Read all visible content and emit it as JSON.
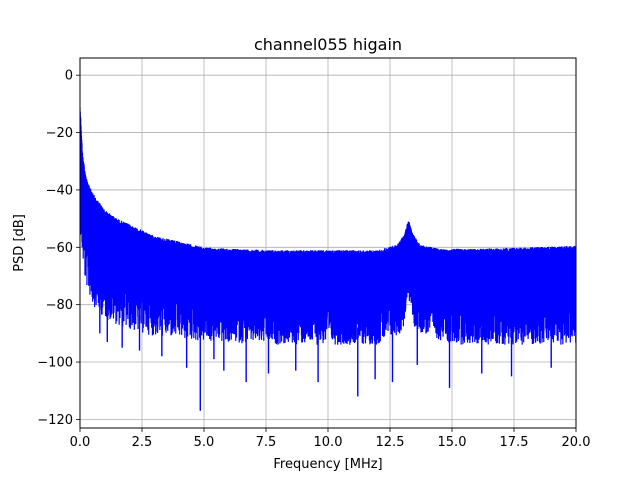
{
  "chart_data": {
    "type": "line",
    "title": "channel055 higain",
    "xlabel": "Frequency [MHz]",
    "ylabel": "PSD [dB]",
    "xlim": [
      0,
      20
    ],
    "ylim": [
      -123,
      6
    ],
    "x_ticks": [
      0,
      2.5,
      5,
      7.5,
      10,
      12.5,
      15,
      17.5,
      20
    ],
    "x_tick_labels": [
      "0.0",
      "2.5",
      "5.0",
      "7.5",
      "10.0",
      "12.5",
      "15.0",
      "17.5",
      "20.0"
    ],
    "y_ticks": [
      0,
      -20,
      -40,
      -60,
      -80,
      -100,
      -120
    ],
    "y_tick_labels": [
      "0",
      "−20",
      "−40",
      "−60",
      "−80",
      "−100",
      "−120"
    ],
    "grid": true,
    "series": [
      {
        "color": "#0000ff",
        "upper_envelope": {
          "x": [
            0,
            0.05,
            0.1,
            0.2,
            0.3,
            0.5,
            0.75,
            1.0,
            1.5,
            2.0,
            2.5,
            3.0,
            4.0,
            5.0,
            6.0,
            8.0,
            10.0,
            12.0,
            12.8,
            13.1,
            13.25,
            13.4,
            13.7,
            14.5,
            16.0,
            18.0,
            20.0
          ],
          "y": [
            -10,
            -18,
            -27,
            -33,
            -37,
            -41,
            -44,
            -47,
            -50,
            -52,
            -54,
            -56,
            -58,
            -60,
            -60.5,
            -61,
            -61,
            -61,
            -59,
            -55,
            -50,
            -55,
            -59,
            -60.5,
            -60.5,
            -60,
            -59.5
          ]
        },
        "lower_envelope": {
          "x": [
            0,
            0.2,
            0.5,
            1.0,
            2.0,
            3.0,
            5.0,
            8.0,
            10.0,
            12.0,
            13.0,
            13.25,
            13.5,
            15.0,
            20.0
          ],
          "y": [
            -55,
            -72,
            -80,
            -85,
            -89,
            -91,
            -93,
            -94,
            -94,
            -94,
            -90,
            -78,
            -89,
            -94,
            -94
          ]
        },
        "deep_dips": [
          {
            "x": 0.8,
            "y": -90
          },
          {
            "x": 1.1,
            "y": -93
          },
          {
            "x": 1.7,
            "y": -95
          },
          {
            "x": 2.4,
            "y": -96
          },
          {
            "x": 3.3,
            "y": -98
          },
          {
            "x": 4.3,
            "y": -102
          },
          {
            "x": 4.85,
            "y": -117
          },
          {
            "x": 5.4,
            "y": -99
          },
          {
            "x": 5.8,
            "y": -103
          },
          {
            "x": 6.7,
            "y": -107
          },
          {
            "x": 7.6,
            "y": -104
          },
          {
            "x": 8.7,
            "y": -103
          },
          {
            "x": 9.6,
            "y": -107
          },
          {
            "x": 11.2,
            "y": -112
          },
          {
            "x": 11.9,
            "y": -106
          },
          {
            "x": 12.6,
            "y": -107
          },
          {
            "x": 13.6,
            "y": -101
          },
          {
            "x": 14.9,
            "y": -109
          },
          {
            "x": 16.2,
            "y": -104
          },
          {
            "x": 17.4,
            "y": -105
          },
          {
            "x": 19.0,
            "y": -102
          }
        ]
      }
    ]
  }
}
